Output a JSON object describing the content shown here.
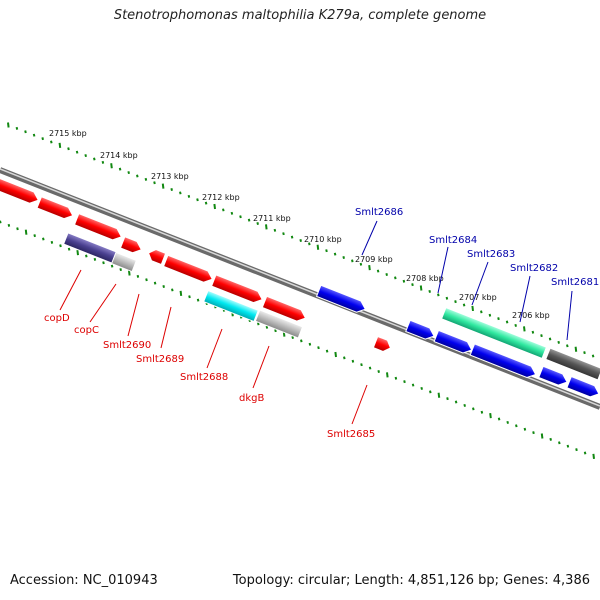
{
  "title": "Stenotrophomonas maltophilia K279a, complete genome",
  "footer": {
    "accession": "Accession: NC_010943",
    "topology": "Topology: circular; Length: 4,851,126 bp; Genes: 4,386"
  },
  "colors": {
    "forward_strand": "#ff0000",
    "reverse_strand": "#0000ff",
    "label_top": "#0000aa",
    "label_bottom": "#dd0000",
    "ticks": "#118811",
    "backbone": "#777777"
  },
  "scale_labels": [
    "2715 kbp",
    "2714 kbp",
    "2713 kbp",
    "2712 kbp",
    "2711 kbp",
    "2710 kbp",
    "2709 kbp",
    "2708 kbp",
    "2707 kbp",
    "2706 kbp"
  ],
  "gene_labels_top": [
    "Smlt2686",
    "Smlt2684",
    "Smlt2683",
    "Smlt2682",
    "Smlt2681"
  ],
  "gene_labels_bottom": [
    "copD",
    "copC",
    "Smlt2690",
    "Smlt2689",
    "Smlt2688",
    "dkgB",
    "Smlt2685"
  ]
}
